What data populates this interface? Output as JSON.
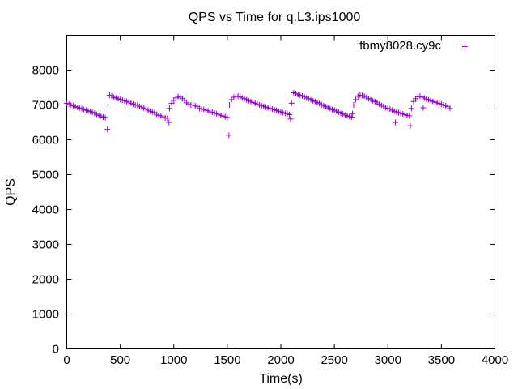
{
  "chart_data": {
    "type": "scatter",
    "title": "QPS vs Time for q.L3.ips1000",
    "xlabel": "Time(s)",
    "ylabel": "QPS",
    "xlim": [
      0,
      4000
    ],
    "ylim": [
      0,
      9000
    ],
    "xticks": [
      "0",
      "500",
      "1000",
      "1500",
      "2000",
      "2500",
      "3000",
      "3500",
      "4000"
    ],
    "yticks": [
      "0",
      "1000",
      "2000",
      "3000",
      "4000",
      "5000",
      "6000",
      "7000",
      "8000"
    ],
    "grid": false,
    "legend_position": "top-right",
    "marker": "+",
    "color": "#9400d3",
    "series": [
      {
        "name": "fbmy8028.cy9c",
        "points": [
          [
            0,
            7050
          ],
          [
            20,
            7030
          ],
          [
            40,
            7000
          ],
          [
            60,
            6980
          ],
          [
            80,
            6950
          ],
          [
            100,
            6930
          ],
          [
            120,
            6910
          ],
          [
            140,
            6890
          ],
          [
            160,
            6870
          ],
          [
            180,
            6850
          ],
          [
            200,
            6830
          ],
          [
            220,
            6810
          ],
          [
            240,
            6790
          ],
          [
            260,
            6760
          ],
          [
            280,
            6730
          ],
          [
            300,
            6700
          ],
          [
            320,
            6680
          ],
          [
            340,
            6650
          ],
          [
            360,
            6640
          ],
          [
            380,
            6300
          ],
          [
            385,
            7000
          ],
          [
            400,
            7280
          ],
          [
            420,
            7260
          ],
          [
            440,
            7220
          ],
          [
            460,
            7200
          ],
          [
            480,
            7180
          ],
          [
            500,
            7160
          ],
          [
            520,
            7140
          ],
          [
            540,
            7120
          ],
          [
            560,
            7100
          ],
          [
            580,
            7080
          ],
          [
            600,
            7050
          ],
          [
            620,
            7020
          ],
          [
            640,
            7000
          ],
          [
            660,
            6990
          ],
          [
            680,
            6960
          ],
          [
            700,
            6940
          ],
          [
            720,
            6910
          ],
          [
            740,
            6880
          ],
          [
            760,
            6850
          ],
          [
            780,
            6820
          ],
          [
            800,
            6800
          ],
          [
            820,
            6780
          ],
          [
            840,
            6730
          ],
          [
            860,
            6700
          ],
          [
            880,
            6690
          ],
          [
            900,
            6660
          ],
          [
            920,
            6630
          ],
          [
            940,
            6620
          ],
          [
            955,
            6500
          ],
          [
            960,
            6900
          ],
          [
            980,
            7050
          ],
          [
            1000,
            7130
          ],
          [
            1020,
            7200
          ],
          [
            1040,
            7240
          ],
          [
            1060,
            7220
          ],
          [
            1080,
            7180
          ],
          [
            1100,
            7130
          ],
          [
            1120,
            7060
          ],
          [
            1140,
            7030
          ],
          [
            1160,
            7000
          ],
          [
            1180,
            7000
          ],
          [
            1200,
            6980
          ],
          [
            1220,
            6950
          ],
          [
            1240,
            6900
          ],
          [
            1260,
            6880
          ],
          [
            1280,
            6870
          ],
          [
            1300,
            6850
          ],
          [
            1320,
            6830
          ],
          [
            1340,
            6800
          ],
          [
            1360,
            6790
          ],
          [
            1380,
            6770
          ],
          [
            1400,
            6750
          ],
          [
            1420,
            6730
          ],
          [
            1440,
            6700
          ],
          [
            1460,
            6680
          ],
          [
            1480,
            6660
          ],
          [
            1500,
            6640
          ],
          [
            1515,
            6130
          ],
          [
            1520,
            7000
          ],
          [
            1540,
            7150
          ],
          [
            1560,
            7220
          ],
          [
            1580,
            7250
          ],
          [
            1600,
            7250
          ],
          [
            1620,
            7230
          ],
          [
            1640,
            7200
          ],
          [
            1660,
            7180
          ],
          [
            1680,
            7150
          ],
          [
            1700,
            7120
          ],
          [
            1720,
            7100
          ],
          [
            1740,
            7070
          ],
          [
            1760,
            7050
          ],
          [
            1780,
            7030
          ],
          [
            1800,
            7000
          ],
          [
            1820,
            6980
          ],
          [
            1840,
            6960
          ],
          [
            1860,
            6940
          ],
          [
            1880,
            6920
          ],
          [
            1900,
            6900
          ],
          [
            1920,
            6880
          ],
          [
            1940,
            6860
          ],
          [
            1960,
            6840
          ],
          [
            1980,
            6820
          ],
          [
            2000,
            6800
          ],
          [
            2020,
            6780
          ],
          [
            2040,
            6760
          ],
          [
            2060,
            6740
          ],
          [
            2080,
            6720
          ],
          [
            2090,
            6600
          ],
          [
            2100,
            7050
          ],
          [
            2120,
            7350
          ],
          [
            2140,
            7330
          ],
          [
            2160,
            7300
          ],
          [
            2180,
            7280
          ],
          [
            2200,
            7260
          ],
          [
            2220,
            7230
          ],
          [
            2240,
            7200
          ],
          [
            2260,
            7180
          ],
          [
            2280,
            7150
          ],
          [
            2300,
            7120
          ],
          [
            2320,
            7100
          ],
          [
            2340,
            7070
          ],
          [
            2360,
            7040
          ],
          [
            2380,
            7010
          ],
          [
            2400,
            6980
          ],
          [
            2420,
            6950
          ],
          [
            2440,
            6920
          ],
          [
            2460,
            6900
          ],
          [
            2480,
            6870
          ],
          [
            2500,
            6850
          ],
          [
            2520,
            6820
          ],
          [
            2540,
            6790
          ],
          [
            2560,
            6760
          ],
          [
            2580,
            6740
          ],
          [
            2600,
            6710
          ],
          [
            2620,
            6690
          ],
          [
            2640,
            6670
          ],
          [
            2660,
            6650
          ],
          [
            2670,
            6750
          ],
          [
            2680,
            7000
          ],
          [
            2700,
            7150
          ],
          [
            2720,
            7250
          ],
          [
            2740,
            7280
          ],
          [
            2760,
            7270
          ],
          [
            2780,
            7250
          ],
          [
            2800,
            7220
          ],
          [
            2820,
            7180
          ],
          [
            2840,
            7150
          ],
          [
            2860,
            7120
          ],
          [
            2880,
            7100
          ],
          [
            2900,
            7060
          ],
          [
            2920,
            7020
          ],
          [
            2940,
            6990
          ],
          [
            2960,
            6960
          ],
          [
            2980,
            6920
          ],
          [
            3000,
            6900
          ],
          [
            3020,
            6880
          ],
          [
            3040,
            6850
          ],
          [
            3060,
            6820
          ],
          [
            3070,
            6500
          ],
          [
            3080,
            6800
          ],
          [
            3100,
            6780
          ],
          [
            3120,
            6760
          ],
          [
            3140,
            6740
          ],
          [
            3160,
            6720
          ],
          [
            3180,
            6700
          ],
          [
            3200,
            6690
          ],
          [
            3210,
            6400
          ],
          [
            3220,
            6900
          ],
          [
            3240,
            7100
          ],
          [
            3260,
            7180
          ],
          [
            3280,
            7230
          ],
          [
            3300,
            7250
          ],
          [
            3320,
            7230
          ],
          [
            3330,
            6920
          ],
          [
            3340,
            7200
          ],
          [
            3360,
            7170
          ],
          [
            3380,
            7150
          ],
          [
            3400,
            7120
          ],
          [
            3420,
            7100
          ],
          [
            3440,
            7080
          ],
          [
            3460,
            7060
          ],
          [
            3480,
            7040
          ],
          [
            3500,
            7020
          ],
          [
            3520,
            7000
          ],
          [
            3540,
            6980
          ],
          [
            3560,
            6950
          ],
          [
            3580,
            6900
          ]
        ]
      }
    ]
  }
}
